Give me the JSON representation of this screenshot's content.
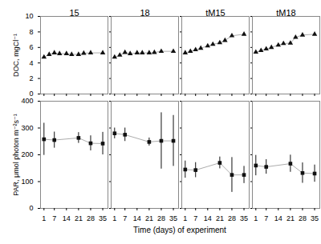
{
  "chart_data": [
    {
      "type": "line",
      "title": "15",
      "ylabel": "DOC, mgCl⁻¹",
      "x": [
        1,
        4,
        7,
        10,
        14,
        17,
        21,
        24,
        28,
        35
      ],
      "values": [
        4.75,
        5.1,
        5.3,
        5.2,
        5.2,
        5.1,
        5.1,
        5.25,
        5.3,
        5.3
      ],
      "color": "#111111",
      "marker": "triangle",
      "line_style": "solid",
      "xlim": [
        -1,
        38
      ],
      "ylim": [
        0,
        10
      ],
      "xticks": [
        1,
        7,
        14,
        21,
        28,
        35
      ],
      "yticks": [
        0,
        2,
        4,
        6,
        8,
        10
      ],
      "tick_labels": "y"
    },
    {
      "type": "line",
      "title": "18",
      "x": [
        1,
        4,
        7,
        10,
        14,
        17,
        21,
        24,
        28,
        35
      ],
      "values": [
        4.75,
        5.0,
        5.35,
        5.2,
        5.3,
        5.3,
        5.3,
        5.35,
        5.5,
        5.5
      ],
      "color": "#111111",
      "marker": "triangle",
      "line_style": "solid",
      "xlim": [
        -1,
        38
      ],
      "ylim": [
        0,
        10
      ],
      "xticks": [
        1,
        7,
        14,
        21,
        28,
        35
      ],
      "yticks": [
        0,
        2,
        4,
        6,
        8,
        10
      ],
      "tick_labels": false
    },
    {
      "type": "line",
      "title": "tM15",
      "x": [
        1,
        4,
        7,
        10,
        14,
        17,
        21,
        24,
        28,
        35
      ],
      "values": [
        5.3,
        5.5,
        5.7,
        5.9,
        6.2,
        6.4,
        6.6,
        6.9,
        7.5,
        7.7
      ],
      "color": "#111111",
      "marker": "triangle",
      "line_style": "solid",
      "xlim": [
        -1,
        38
      ],
      "ylim": [
        0,
        10
      ],
      "xticks": [
        1,
        7,
        14,
        21,
        28,
        35
      ],
      "yticks": [
        0,
        2,
        4,
        6,
        8,
        10
      ],
      "tick_labels": false
    },
    {
      "type": "line",
      "title": "tM18",
      "x": [
        1,
        4,
        7,
        10,
        14,
        17,
        21,
        24,
        28,
        35
      ],
      "values": [
        5.4,
        5.6,
        5.8,
        6.0,
        6.3,
        6.5,
        6.55,
        7.3,
        7.6,
        7.7
      ],
      "color": "#111111",
      "marker": "triangle",
      "line_style": "solid",
      "xlim": [
        -1,
        38
      ],
      "ylim": [
        0,
        10
      ],
      "xticks": [
        1,
        7,
        14,
        21,
        28,
        35
      ],
      "yticks": [
        0,
        2,
        4,
        6,
        8,
        10
      ],
      "tick_labels": false
    },
    {
      "type": "line",
      "ylabel": "PAR, μmol photon m⁻²s⁻¹",
      "xlabel": "Time (days) of experiment",
      "x": [
        1,
        7,
        21,
        28,
        35
      ],
      "values": [
        258,
        255,
        263,
        243,
        242
      ],
      "yerr": [
        60,
        30,
        20,
        28,
        42
      ],
      "color": "#111111",
      "marker": "square",
      "line_style": "solid",
      "xlim": [
        -1,
        38
      ],
      "ylim": [
        0,
        400
      ],
      "xticks": [
        1,
        7,
        14,
        21,
        28,
        35
      ],
      "yticks": [
        0,
        100,
        200,
        300,
        400
      ]
    },
    {
      "type": "line",
      "x": [
        1,
        7,
        21,
        28,
        35
      ],
      "values": [
        280,
        275,
        248,
        252,
        252
      ],
      "yerr": [
        20,
        25,
        15,
        105,
        95
      ],
      "color": "#111111",
      "marker": "square",
      "line_style": "solid",
      "xlim": [
        -1,
        38
      ],
      "ylim": [
        0,
        400
      ],
      "xticks": [
        1,
        7,
        14,
        21,
        28,
        35
      ],
      "yticks": [
        0,
        100,
        200,
        300,
        400
      ],
      "tick_labels": "x"
    },
    {
      "type": "line",
      "x": [
        1,
        7,
        21,
        28,
        35
      ],
      "values": [
        145,
        143,
        170,
        125,
        125
      ],
      "yerr": [
        32,
        28,
        22,
        65,
        32
      ],
      "color": "#111111",
      "marker": "square",
      "line_style": "solid",
      "xlim": [
        -1,
        38
      ],
      "ylim": [
        0,
        400
      ],
      "xticks": [
        1,
        7,
        14,
        21,
        28,
        35
      ],
      "yticks": [
        0,
        100,
        200,
        300,
        400
      ],
      "tick_labels": "x"
    },
    {
      "type": "line",
      "x": [
        1,
        7,
        21,
        28,
        35
      ],
      "values": [
        160,
        155,
        167,
        132,
        130
      ],
      "yerr": [
        38,
        27,
        32,
        38,
        32
      ],
      "color": "#111111",
      "marker": "square",
      "line_style": "solid",
      "xlim": [
        -1,
        38
      ],
      "ylim": [
        0,
        400
      ],
      "xticks": [
        1,
        7,
        14,
        21,
        28,
        35
      ],
      "yticks": [
        0,
        100,
        200,
        300,
        400
      ],
      "tick_labels": "x"
    }
  ]
}
